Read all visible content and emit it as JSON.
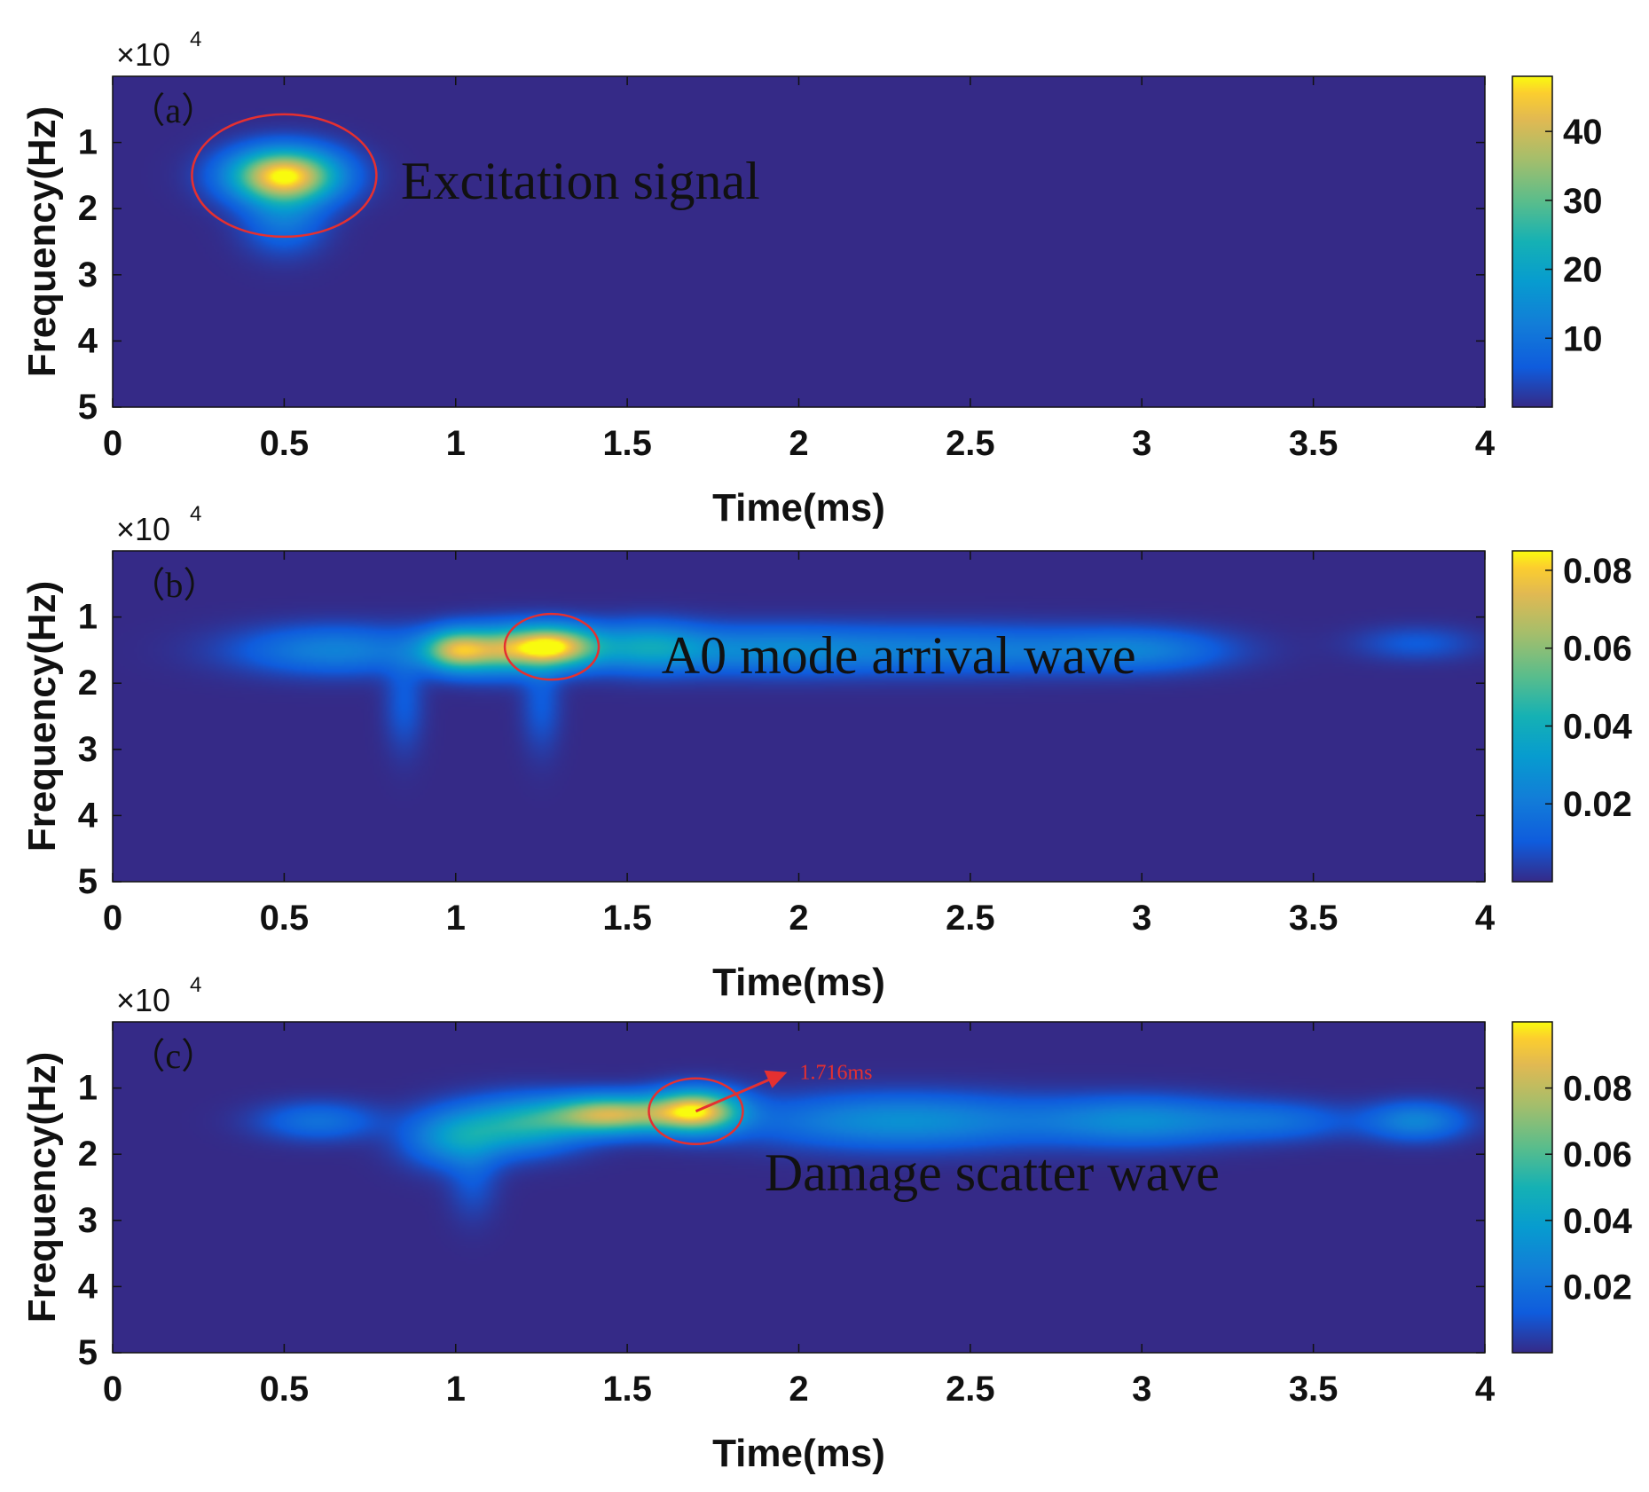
{
  "chart_data": [
    {
      "type": "heatmap",
      "panel_label": "（a）",
      "multiplier_base": "×10",
      "multiplier_exponent": "4",
      "xlabel": "Time(ms)",
      "ylabel": "Frequency(Hz)",
      "xlim": [
        0,
        4
      ],
      "ylim": [
        0,
        5
      ],
      "xticks": [
        "0",
        "0.5",
        "1",
        "1.5",
        "2",
        "2.5",
        "3",
        "3.5",
        "4"
      ],
      "yticks": [
        "1",
        "2",
        "3",
        "4",
        "5"
      ],
      "colorbar": {
        "min": 0,
        "max": 48,
        "ticks": [
          "10",
          "20",
          "30",
          "40"
        ],
        "tick_values": [
          10,
          20,
          30,
          40
        ]
      },
      "annotation": {
        "text": "Excitation signal"
      },
      "highlight": {
        "time_ms": 0.5,
        "freq_e4": 1.5
      },
      "blobs": [
        {
          "t": 0.5,
          "f": 1.5,
          "st": 0.11,
          "sf": 0.28,
          "a": 1.0
        },
        {
          "t": 0.5,
          "f": 2.15,
          "st": 0.08,
          "sf": 0.35,
          "a": 0.22
        }
      ]
    },
    {
      "type": "heatmap",
      "panel_label": "（b）",
      "multiplier_base": "×10",
      "multiplier_exponent": "4",
      "xlabel": "Time(ms)",
      "ylabel": "Frequency(Hz)",
      "xlim": [
        0,
        4
      ],
      "ylim": [
        0,
        5
      ],
      "xticks": [
        "0",
        "0.5",
        "1",
        "1.5",
        "2",
        "2.5",
        "3",
        "3.5",
        "4"
      ],
      "yticks": [
        "1",
        "2",
        "3",
        "4",
        "5"
      ],
      "colorbar": {
        "min": 0,
        "max": 0.085,
        "ticks": [
          "0.02",
          "0.04",
          "0.06",
          "0.08"
        ],
        "tick_values": [
          0.02,
          0.04,
          0.06,
          0.08
        ]
      },
      "annotation": {
        "text": "A0 mode arrival wave"
      },
      "highlight": {
        "time_ms": 1.28,
        "freq_e4": 1.45
      },
      "blobs": [
        {
          "t": 1.28,
          "f": 1.45,
          "st": 0.09,
          "sf": 0.22,
          "a": 0.95
        },
        {
          "t": 1.0,
          "f": 1.5,
          "st": 0.07,
          "sf": 0.22,
          "a": 0.72
        },
        {
          "t": 1.13,
          "f": 1.5,
          "st": 0.08,
          "sf": 0.25,
          "a": 0.5
        },
        {
          "t": 1.55,
          "f": 1.45,
          "st": 0.12,
          "sf": 0.25,
          "a": 0.35
        },
        {
          "t": 0.65,
          "f": 1.5,
          "st": 0.2,
          "sf": 0.25,
          "a": 0.27
        },
        {
          "t": 1.9,
          "f": 1.5,
          "st": 0.25,
          "sf": 0.25,
          "a": 0.28
        },
        {
          "t": 2.5,
          "f": 1.5,
          "st": 0.3,
          "sf": 0.25,
          "a": 0.24
        },
        {
          "t": 3.0,
          "f": 1.5,
          "st": 0.18,
          "sf": 0.22,
          "a": 0.22
        },
        {
          "t": 0.85,
          "f": 2.3,
          "st": 0.04,
          "sf": 0.5,
          "a": 0.12
        },
        {
          "t": 1.25,
          "f": 2.3,
          "st": 0.04,
          "sf": 0.5,
          "a": 0.12
        },
        {
          "t": 3.8,
          "f": 1.4,
          "st": 0.12,
          "sf": 0.18,
          "a": 0.12
        }
      ]
    },
    {
      "type": "heatmap",
      "panel_label": "（c）",
      "multiplier_base": "×10",
      "multiplier_exponent": "4",
      "xlabel": "Time(ms)",
      "ylabel": "Frequency(Hz)",
      "xlim": [
        0,
        4
      ],
      "ylim": [
        0,
        5
      ],
      "xticks": [
        "0",
        "0.5",
        "1",
        "1.5",
        "2",
        "2.5",
        "3",
        "3.5",
        "4"
      ],
      "yticks": [
        "1",
        "2",
        "3",
        "4",
        "5"
      ],
      "colorbar": {
        "min": 0,
        "max": 0.1,
        "ticks": [
          "0.02",
          "0.04",
          "0.06",
          "0.08"
        ],
        "tick_values": [
          0.02,
          0.04,
          0.06,
          0.08
        ]
      },
      "annotation": {
        "text": "Damage scatter wave"
      },
      "highlight": {
        "time_ms": 1.7,
        "freq_e4": 1.35
      },
      "marker": {
        "text": "1.716ms",
        "time_ms": 1.716
      },
      "blobs": [
        {
          "t": 1.7,
          "f": 1.35,
          "st": 0.09,
          "sf": 0.22,
          "a": 0.92
        },
        {
          "t": 1.45,
          "f": 1.4,
          "st": 0.12,
          "sf": 0.2,
          "a": 0.8
        },
        {
          "t": 1.2,
          "f": 1.55,
          "st": 0.12,
          "sf": 0.28,
          "a": 0.45
        },
        {
          "t": 1.0,
          "f": 1.75,
          "st": 0.1,
          "sf": 0.3,
          "a": 0.35
        },
        {
          "t": 2.3,
          "f": 1.5,
          "st": 0.3,
          "sf": 0.28,
          "a": 0.33
        },
        {
          "t": 3.0,
          "f": 1.5,
          "st": 0.2,
          "sf": 0.25,
          "a": 0.3
        },
        {
          "t": 3.8,
          "f": 1.5,
          "st": 0.1,
          "sf": 0.2,
          "a": 0.28
        },
        {
          "t": 0.6,
          "f": 1.5,
          "st": 0.12,
          "sf": 0.2,
          "a": 0.2
        },
        {
          "t": 3.4,
          "f": 1.5,
          "st": 0.15,
          "sf": 0.2,
          "a": 0.17
        },
        {
          "t": 1.05,
          "f": 2.4,
          "st": 0.05,
          "sf": 0.4,
          "a": 0.1
        }
      ]
    }
  ]
}
